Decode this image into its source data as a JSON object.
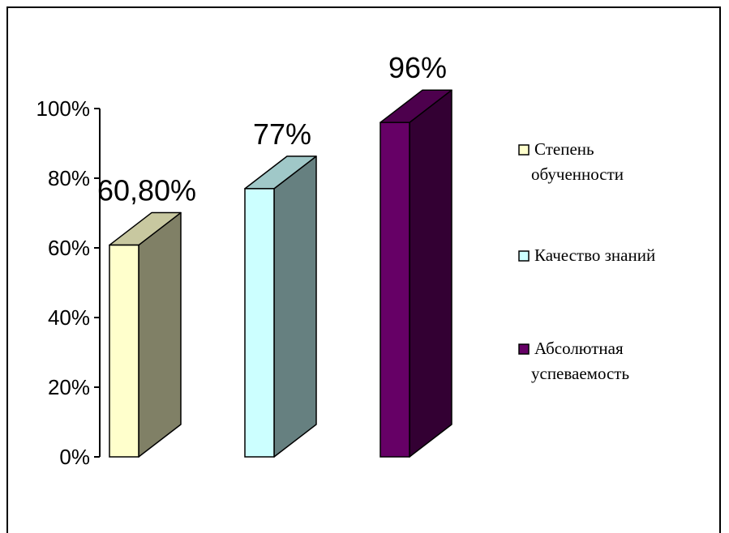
{
  "chart_data": {
    "type": "bar",
    "style": "3d-column",
    "ylim": [
      0,
      100
    ],
    "y_ticks": [
      {
        "value": 0,
        "label": "0%"
      },
      {
        "value": 20,
        "label": "20%"
      },
      {
        "value": 40,
        "label": "40%"
      },
      {
        "value": 60,
        "label": "60%"
      },
      {
        "value": 80,
        "label": "80%"
      },
      {
        "value": 100,
        "label": "100%"
      }
    ],
    "series": [
      {
        "name": "Степень обученности",
        "legend_lines": [
          "Степень",
          "обученности"
        ],
        "value": 60.8,
        "label": "60,80%",
        "front": "#FFFFCC",
        "side": "#808066",
        "top": "#C8C8A0"
      },
      {
        "name": "Качество знаний",
        "legend_lines": [
          "Качество знаний"
        ],
        "value": 77,
        "label": "77%",
        "front": "#CCFFFF",
        "side": "#668080",
        "top": "#A0C8C8"
      },
      {
        "name": "Абсолютная успеваемость",
        "legend_lines": [
          "Абсолютная",
          "успеваемость"
        ],
        "value": 96,
        "label": "96%",
        "front": "#660066",
        "side": "#330033",
        "top": "#4D004D"
      }
    ],
    "legend_position": "right",
    "grid": false
  }
}
